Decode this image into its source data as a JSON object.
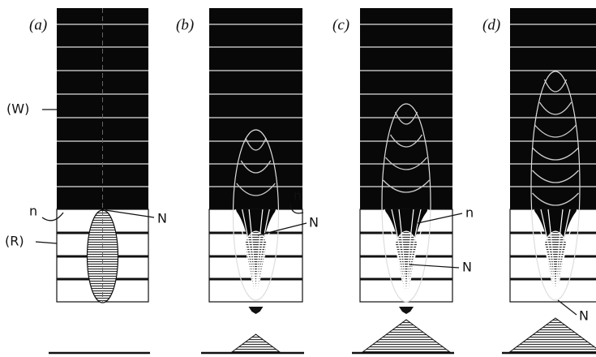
{
  "panels": [
    {
      "label": "(a)",
      "annotations": [
        "(W)",
        "(R)",
        "n",
        "N"
      ]
    },
    {
      "label": "(b)",
      "annotations": [
        "n",
        "N"
      ]
    },
    {
      "label": "(c)",
      "annotations": [
        "n",
        "N"
      ]
    },
    {
      "label": "(d)",
      "annotations": [
        "N"
      ]
    }
  ]
}
